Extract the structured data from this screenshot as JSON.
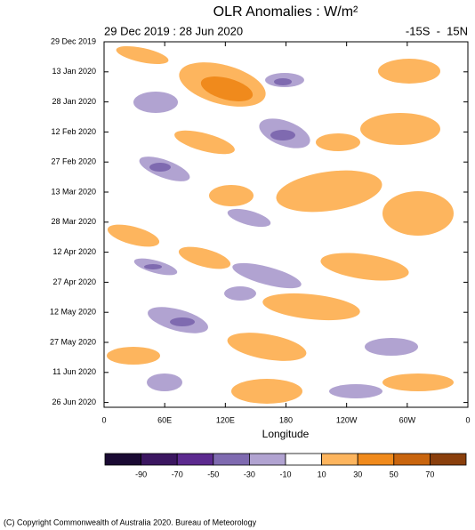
{
  "chart_data": {
    "type": "hovmoller",
    "title": "OLR Anomalies : W/m²",
    "subtitle_left": "29 Dec 2019 : 28 Jun 2020",
    "subtitle_right": "-15S  -  15N",
    "xlabel": "Longitude",
    "xlim": [
      0,
      360
    ],
    "xticks": [
      0,
      {
        "value": 60,
        "label": "60E"
      },
      {
        "value": 120,
        "label": "120E"
      },
      180,
      {
        "value": 240,
        "label": "120W"
      },
      {
        "value": 300,
        "label": "60W"
      },
      {
        "value": 360,
        "label": "0"
      }
    ],
    "yticks": [
      "29 Dec 2019",
      "13 Jan 2020",
      "28 Jan 2020",
      "12 Feb 2020",
      "27 Feb 2020",
      "13 Mar 2020",
      "28 Mar 2020",
      "12 Apr 2020",
      "27 Apr 2020",
      "12 May 2020",
      "27 May 2020",
      "11 Jun 2020",
      "26 Jun 2020"
    ],
    "colorbar": {
      "levels": [
        -90,
        -70,
        -50,
        -30,
        -10,
        10,
        30,
        50,
        70
      ],
      "colors": [
        "#1a0a33",
        "#3b1660",
        "#5c2a8f",
        "#7f6ab0",
        "#b1a3d1",
        "#ffffff",
        "#fdb55e",
        "#f08a1c",
        "#c9650e",
        "#8a3f0c"
      ]
    },
    "footer": "(C) Copyright Commonwealth of Australia 2020. Bureau of Meteorology"
  }
}
